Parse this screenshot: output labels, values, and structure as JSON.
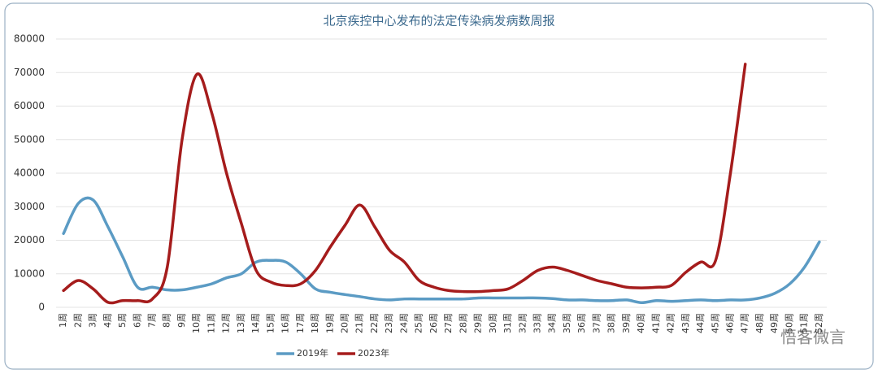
{
  "chart_data": {
    "type": "line",
    "title": "北京疾控中心发布的法定传染病发病数周报",
    "categories": [
      "1周",
      "2周",
      "3周",
      "4周",
      "5周",
      "6周",
      "7周",
      "8周",
      "9周",
      "10周",
      "11周",
      "12周",
      "13周",
      "14周",
      "15周",
      "16周",
      "17周",
      "18周",
      "19周",
      "20周",
      "21周",
      "22周",
      "23周",
      "24周",
      "25周",
      "26周",
      "27周",
      "28周",
      "29周",
      "30周",
      "31周",
      "32周",
      "33周",
      "34周",
      "35周",
      "36周",
      "37周",
      "38周",
      "39周",
      "40周",
      "41周",
      "42周",
      "43周",
      "44周",
      "45周",
      "46周",
      "47周",
      "48周",
      "49周",
      "50周",
      "51周",
      "52周"
    ],
    "series": [
      {
        "name": "2019年",
        "color": "#5b9bc4",
        "values": [
          22000,
          31000,
          32000,
          24000,
          15000,
          6000,
          6000,
          5200,
          5200,
          6000,
          7000,
          8800,
          10000,
          13500,
          14000,
          13500,
          10000,
          5500,
          4500,
          3800,
          3200,
          2500,
          2200,
          2500,
          2500,
          2500,
          2500,
          2500,
          2800,
          2800,
          2800,
          2800,
          2800,
          2600,
          2200,
          2200,
          2000,
          2000,
          2200,
          1400,
          2000,
          1800,
          2000,
          2200,
          2000,
          2200,
          2200,
          2800,
          4200,
          7000,
          12000,
          19500
        ]
      },
      {
        "name": "2023年",
        "color": "#a51c1c",
        "values": [
          5000,
          8000,
          5500,
          1500,
          2000,
          2000,
          2500,
          12000,
          50000,
          69500,
          58000,
          40000,
          25000,
          11000,
          7500,
          6500,
          7000,
          11000,
          18000,
          24500,
          30500,
          24000,
          17000,
          13500,
          8000,
          6000,
          5000,
          4700,
          4700,
          5000,
          5500,
          8000,
          11000,
          12000,
          11000,
          9500,
          8000,
          7000,
          6000,
          5800,
          6000,
          6500,
          10500,
          13500,
          14000,
          40000,
          72500,
          null,
          null,
          null,
          null,
          null
        ]
      }
    ],
    "ylim": [
      0,
      80000
    ],
    "yticks": [
      0,
      10000,
      20000,
      30000,
      40000,
      50000,
      60000,
      70000,
      80000
    ],
    "grid": true,
    "legend": "bottom",
    "watermark": "悟客微言"
  }
}
